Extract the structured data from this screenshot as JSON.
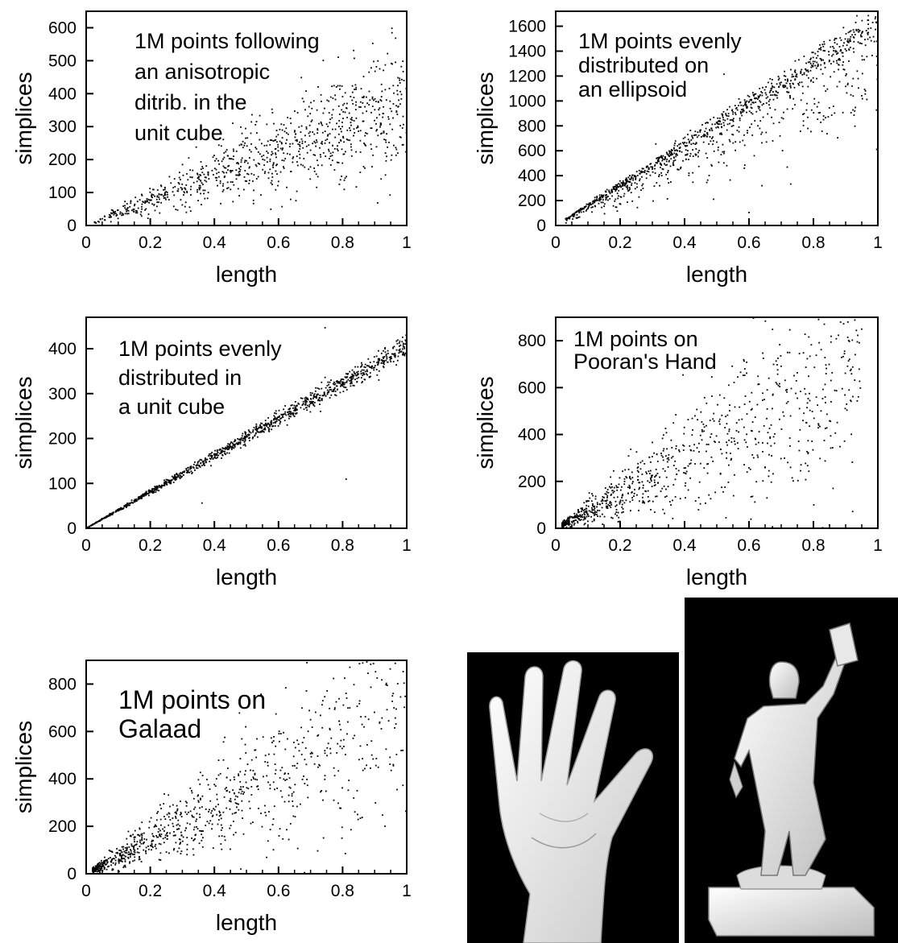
{
  "chart_data": [
    {
      "id": "p1",
      "type": "scatter",
      "title": "",
      "annotation": [
        "1M points following",
        "an anisotropic",
        "ditrib. in the",
        "unit cube"
      ],
      "xlabel": "length",
      "ylabel": "simplices",
      "xlim": [
        0,
        1
      ],
      "ylim": [
        0,
        650
      ],
      "xticks": [
        0,
        0.2,
        0.4,
        0.6,
        0.8,
        1
      ],
      "xtick_labels": [
        "0",
        "0.2",
        "0.4",
        "0.6",
        "0.8",
        "1"
      ],
      "yticks": [
        0,
        100,
        200,
        300,
        400,
        500,
        600
      ],
      "ytick_labels": [
        "0",
        "100",
        "200",
        "300",
        "400",
        "500",
        "600"
      ],
      "grid": false,
      "point_color": "#000000",
      "distribution": {
        "point_count": 900,
        "x_range": [
          0.02,
          1.0
        ],
        "x_shape": "skew_high",
        "slope": 380,
        "spread_fraction": 0.26,
        "outlier_fraction": 0.03
      }
    },
    {
      "id": "p2",
      "type": "scatter",
      "title": "",
      "annotation": [
        "1M points evenly",
        "distributed on",
        "an ellipsoid"
      ],
      "xlabel": "length",
      "ylabel": "simplices",
      "xlim": [
        0,
        1
      ],
      "ylim": [
        0,
        1720
      ],
      "xticks": [
        0,
        0.2,
        0.4,
        0.6,
        0.8,
        1
      ],
      "xtick_labels": [
        "0",
        "0.2",
        "0.4",
        "0.6",
        "0.8",
        "1"
      ],
      "yticks": [
        0,
        200,
        400,
        600,
        800,
        1000,
        1200,
        1400,
        1600
      ],
      "ytick_labels": [
        "0",
        "200",
        "400",
        "600",
        "800",
        "1000",
        "1200",
        "1400",
        "1600"
      ],
      "grid": false,
      "point_color": "#000000",
      "distribution": {
        "point_count": 1100,
        "x_range": [
          0.03,
          1.0
        ],
        "x_shape": "uniform",
        "slope": 1620,
        "spread_fraction": 0.05,
        "lower_tail_fraction": 0.25,
        "outlier_fraction": 0.01
      }
    },
    {
      "id": "p3",
      "type": "scatter",
      "title": "",
      "annotation": [
        "1M points evenly",
        "distributed in",
        "a unit cube"
      ],
      "xlabel": "length",
      "ylabel": "simplices",
      "xlim": [
        0,
        1
      ],
      "ylim": [
        0,
        470
      ],
      "xticks": [
        0,
        0.2,
        0.4,
        0.6,
        0.8,
        1
      ],
      "xtick_labels": [
        "0",
        "0.2",
        "0.4",
        "0.6",
        "0.8",
        "1"
      ],
      "yticks": [
        0,
        100,
        200,
        300,
        400
      ],
      "ytick_labels": [
        "0",
        "100",
        "200",
        "300",
        "400"
      ],
      "grid": false,
      "point_color": "#000000",
      "distribution": {
        "point_count": 1100,
        "x_range": [
          0.0,
          1.0
        ],
        "x_shape": "uniform",
        "slope": 405,
        "spread_fraction": 0.035,
        "outlier_fraction": 0.004
      }
    },
    {
      "id": "p4",
      "type": "scatter",
      "title": "",
      "annotation": [
        "1M points on",
        "Pooran's Hand"
      ],
      "xlabel": "length",
      "ylabel": "simplices",
      "xlim": [
        0,
        1
      ],
      "ylim": [
        0,
        900
      ],
      "xticks": [
        0,
        0.2,
        0.4,
        0.6,
        0.8,
        1
      ],
      "xtick_labels": [
        "0",
        "0.2",
        "0.4",
        "0.6",
        "0.8",
        "1"
      ],
      "yticks": [
        0,
        200,
        400,
        600,
        800
      ],
      "ytick_labels": [
        "0",
        "200",
        "400",
        "600",
        "800"
      ],
      "grid": false,
      "point_color": "#000000",
      "distribution": {
        "point_count": 900,
        "x_range": [
          0.02,
          0.95
        ],
        "x_shape": "skew_low",
        "slope": 720,
        "spread_fraction": 0.38,
        "outlier_fraction": 0.03
      }
    },
    {
      "id": "p5",
      "type": "scatter",
      "title": "",
      "annotation": [
        "1M points on",
        "Galaad"
      ],
      "xlabel": "length",
      "ylabel": "simplices",
      "xlim": [
        0,
        1
      ],
      "ylim": [
        0,
        900
      ],
      "xticks": [
        0,
        0.2,
        0.4,
        0.6,
        0.8,
        1
      ],
      "xtick_labels": [
        "0",
        "0.2",
        "0.4",
        "0.6",
        "0.8",
        "1"
      ],
      "yticks": [
        0,
        200,
        400,
        600,
        800
      ],
      "ytick_labels": [
        "0",
        "200",
        "400",
        "600",
        "800"
      ],
      "grid": false,
      "point_color": "#000000",
      "distribution": {
        "point_count": 900,
        "x_range": [
          0.02,
          1.0
        ],
        "x_shape": "skew_low",
        "slope": 690,
        "spread_fraction": 0.36,
        "outlier_fraction": 0.03
      }
    }
  ],
  "renders": [
    {
      "id": "hand-render",
      "subject": "Pooran's Hand",
      "background": "#000000",
      "surface": "#f2f2f2"
    },
    {
      "id": "galaad-render",
      "subject": "Galaad",
      "background": "#000000",
      "surface": "#f2f2f2"
    }
  ]
}
